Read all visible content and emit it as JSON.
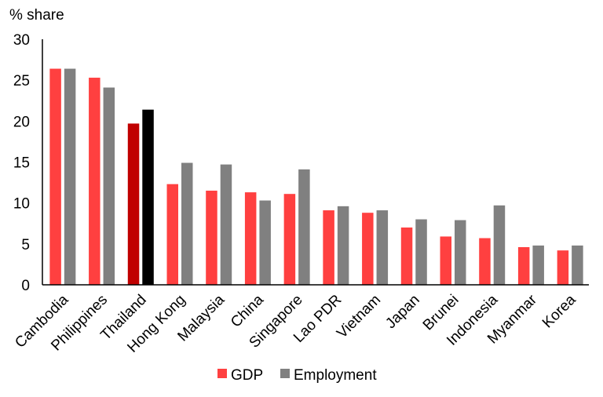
{
  "chart_data": {
    "type": "bar",
    "ylabel": "% share",
    "ylim": [
      0,
      30
    ],
    "yticks": [
      0,
      5,
      10,
      15,
      20,
      25,
      30
    ],
    "grid": false,
    "legend_placement": "bottom",
    "categories": [
      "Cambodia",
      "Philippines",
      "Thailand",
      "Hong Kong",
      "Malaysia",
      "China",
      "Singapore",
      "Lao PDR",
      "Vietnam",
      "Japan",
      "Brunei",
      "Indonesia",
      "Myanmar",
      "Korea"
    ],
    "series": [
      {
        "name": "GDP",
        "color": "#ff4040",
        "highlight_color": "#c00000",
        "values": [
          26.4,
          25.3,
          19.7,
          12.3,
          11.5,
          11.3,
          11.1,
          9.1,
          8.8,
          7.0,
          5.9,
          5.7,
          4.6,
          4.2
        ]
      },
      {
        "name": "Employment",
        "color": "#808080",
        "highlight_color": "#000000",
        "values": [
          26.4,
          24.1,
          21.4,
          14.9,
          14.7,
          10.3,
          14.1,
          9.6,
          9.1,
          8.0,
          7.9,
          9.7,
          4.8,
          4.8
        ]
      }
    ],
    "highlight_category": "Thailand"
  }
}
